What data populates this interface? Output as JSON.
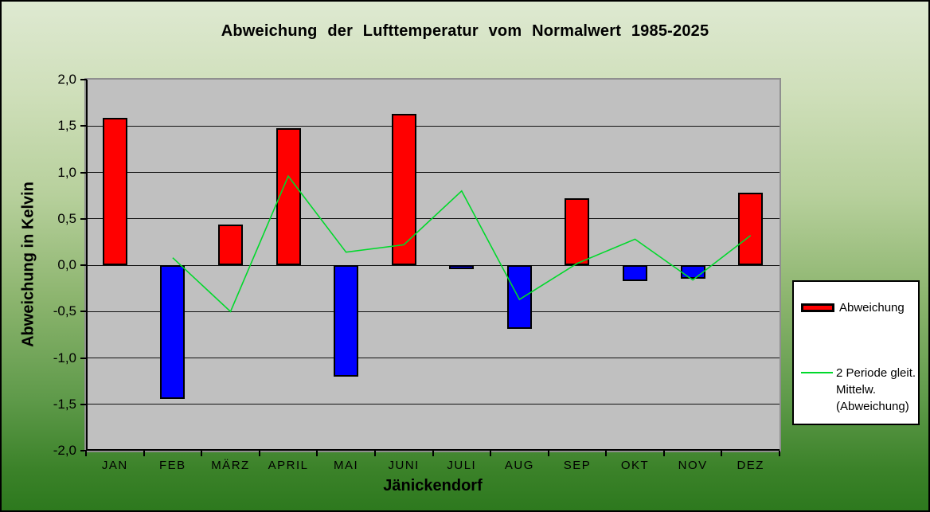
{
  "chart_data": {
    "type": "bar",
    "title": "Abweichung der Lufttemperatur vom Normalwert 1985-2025",
    "xlabel": "Jänickendorf",
    "ylabel": "Abweichung in Kelvin",
    "ylim": [
      -2.0,
      2.0
    ],
    "ytick_step": 0.5,
    "ytick_labels": [
      "2,0",
      "1,5",
      "1,0",
      "0,5",
      "0,0",
      "-0,5",
      "-1,0",
      "-1,5",
      "-2,0"
    ],
    "categories": [
      "JAN",
      "FEB",
      "MÄRZ",
      "APRIL",
      "MAI",
      "JUNI",
      "JULI",
      "AUG",
      "SEP",
      "OKT",
      "NOV",
      "DEZ"
    ],
    "series": [
      {
        "name": "Abweichung",
        "type": "bar",
        "values": [
          1.59,
          -1.44,
          0.44,
          1.48,
          -1.2,
          1.63,
          -0.04,
          -0.69,
          0.72,
          -0.17,
          -0.15,
          0.78
        ],
        "color_positive": "#ff0000",
        "color_negative": "#0000ff"
      },
      {
        "name": "2 Periode gleit. Mittelw. (Abweichung)",
        "type": "line",
        "values": [
          null,
          0.08,
          -0.5,
          0.96,
          0.14,
          0.22,
          0.8,
          -0.37,
          0.02,
          0.28,
          -0.16,
          0.32
        ],
        "color": "#00d92b"
      }
    ],
    "grid": true,
    "plot_bg": "#c0c0c0",
    "legend_position": "right"
  },
  "legend": {
    "items": [
      {
        "label": "Abweichung",
        "swatch": "red-bar"
      },
      {
        "lines": [
          "2 Periode gleit.",
          "Mittelw.",
          "(Abweichung)"
        ],
        "swatch": "green-line"
      }
    ]
  },
  "colors": {
    "bar_positive": "#ff0000",
    "bar_negative": "#0000ff",
    "line": "#00d92b",
    "plot_background": "#c0c0c0",
    "background_top": "#dee9d1",
    "background_bottom": "#2d791e"
  }
}
